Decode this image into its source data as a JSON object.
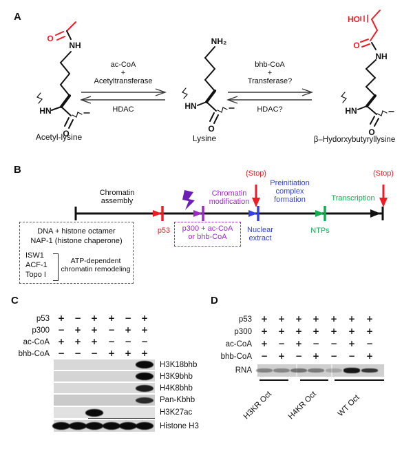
{
  "colors": {
    "red": "#ee1c25",
    "purple": "#9e2bc8",
    "bolt": "#6d1fb5",
    "blue": "#3340e8",
    "green": "#0fae4e"
  },
  "panel_a": {
    "label": "A",
    "structures": [
      {
        "name": "Acetyl-lysine",
        "atoms": {
          "o_top": "O",
          "nh_top": "NH",
          "hn": "HN",
          "o_bottom": "O"
        }
      },
      {
        "name": "Lysine",
        "atoms": {
          "nh2": "NH₂",
          "hn": "HN",
          "o_bottom": "O"
        }
      },
      {
        "name": "β–Hydorxybutyryllysine",
        "atoms": {
          "ho": "HO",
          "o_acyl": "O",
          "nh_top": "NH",
          "hn": "HN",
          "o_bottom": "O"
        }
      }
    ],
    "reactions": [
      {
        "cofactor": "ac-CoA",
        "plus": "+",
        "enzyme": "Acetyltransferase",
        "reverse": "HDAC"
      },
      {
        "cofactor": "bhb-CoA",
        "plus": "+",
        "enzyme": "Transferase?",
        "reverse": "HDAC?"
      }
    ]
  },
  "panel_b": {
    "label": "B",
    "stage_labels": {
      "chromatin_assembly": "Chromatin\nassembly",
      "chromatin_modification": "Chromatin\nmodification",
      "preinitiation": "Preinitiation\ncomplex\nformation",
      "transcription": "Transcription",
      "stop1": "(Stop)",
      "stop2": "(Stop)"
    },
    "additions": {
      "p53": "p53",
      "p300_box": "p300 + ac-CoA\nor bhb-CoA",
      "nuclear_extract": "Nuclear\nextract",
      "ntps": "NTPs"
    },
    "assembly_box": {
      "line1": "DNA + histone octamer",
      "line2": "NAP-1 (histone chaperone)",
      "factors": [
        "ISW1",
        "ACF-1",
        "Topo I"
      ],
      "remodeling": "ATP-dependent\nchromatin remodeling"
    }
  },
  "panel_c": {
    "label": "C",
    "condition_rows": [
      {
        "label": "p53",
        "values": [
          "+",
          "−",
          "+",
          "+",
          "−",
          "+"
        ]
      },
      {
        "label": "p300",
        "values": [
          "−",
          "+",
          "+",
          "−",
          "+",
          "+"
        ]
      },
      {
        "label": "ac-CoA",
        "values": [
          "+",
          "+",
          "+",
          "−",
          "−",
          "−"
        ]
      },
      {
        "label": "bhb-CoA",
        "values": [
          "−",
          "−",
          "−",
          "+",
          "+",
          "+"
        ]
      }
    ],
    "blots": [
      {
        "label": "H3K18bhb",
        "bands": [
          0,
          0,
          0,
          0,
          0,
          1
        ]
      },
      {
        "label": "H3K9bhb",
        "bands": [
          0,
          0,
          0,
          0,
          0,
          1
        ]
      },
      {
        "label": "H4K8bhb",
        "bands": [
          0,
          0,
          0,
          0,
          0,
          0.85
        ]
      },
      {
        "label": "Pan-Kbhb",
        "bands": [
          0,
          0,
          0,
          0,
          0,
          0.7
        ]
      },
      {
        "label": "H3K27ac",
        "bands": [
          0,
          0,
          1,
          0,
          0,
          0
        ]
      },
      {
        "label": "Histone H3",
        "bands": [
          1,
          1,
          1,
          1,
          1,
          1
        ]
      }
    ]
  },
  "panel_d": {
    "label": "D",
    "condition_rows": [
      {
        "label": "p53",
        "values": [
          "+",
          "+",
          "+",
          "+",
          "+",
          "+",
          "+"
        ]
      },
      {
        "label": "p300",
        "values": [
          "+",
          "+",
          "+",
          "+",
          "+",
          "+",
          "+"
        ]
      },
      {
        "label": "ac-CoA",
        "values": [
          "+",
          "−",
          "+",
          "−",
          "−",
          "+",
          "−"
        ]
      },
      {
        "label": "bhb-CoA",
        "values": [
          "−",
          "+",
          "−",
          "+",
          "−",
          "−",
          "+"
        ]
      }
    ],
    "gel": {
      "label": "RNA",
      "bands": [
        0.3,
        0.28,
        0.42,
        0.36,
        0.08,
        1,
        0.8
      ]
    },
    "groups": [
      {
        "label": "H3KR Oct"
      },
      {
        "label": "H4KR Oct"
      },
      {
        "label": "WT Oct"
      }
    ]
  }
}
